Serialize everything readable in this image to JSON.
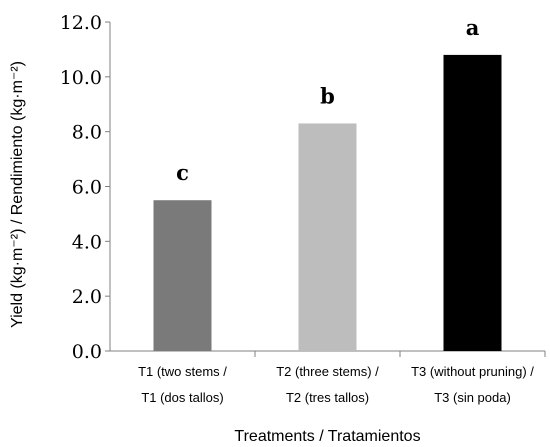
{
  "chart_data": {
    "type": "bar",
    "categories": [
      [
        "T1 (two stems /",
        "T1 (dos tallos)"
      ],
      [
        "T2 (three stems) /",
        "T2 (tres tallos)"
      ],
      [
        "T3 (without pruning) /",
        "T3 (sin poda)"
      ]
    ],
    "values": [
      5.5,
      8.3,
      10.8
    ],
    "significance_letters": [
      "c",
      "b",
      "a"
    ],
    "colors": [
      "#7a7a7a",
      "#bdbdbd",
      "#000000"
    ],
    "xlabel": "Treatments / Tratamientos",
    "ylabel": "Yield (kg·m⁻²) / Rendimiento (kg·m⁻²)",
    "ylim": [
      0,
      12
    ],
    "yticks": [
      "0.0",
      "2.0",
      "4.0",
      "6.0",
      "8.0",
      "10.0",
      "12.0"
    ],
    "grid": false
  }
}
